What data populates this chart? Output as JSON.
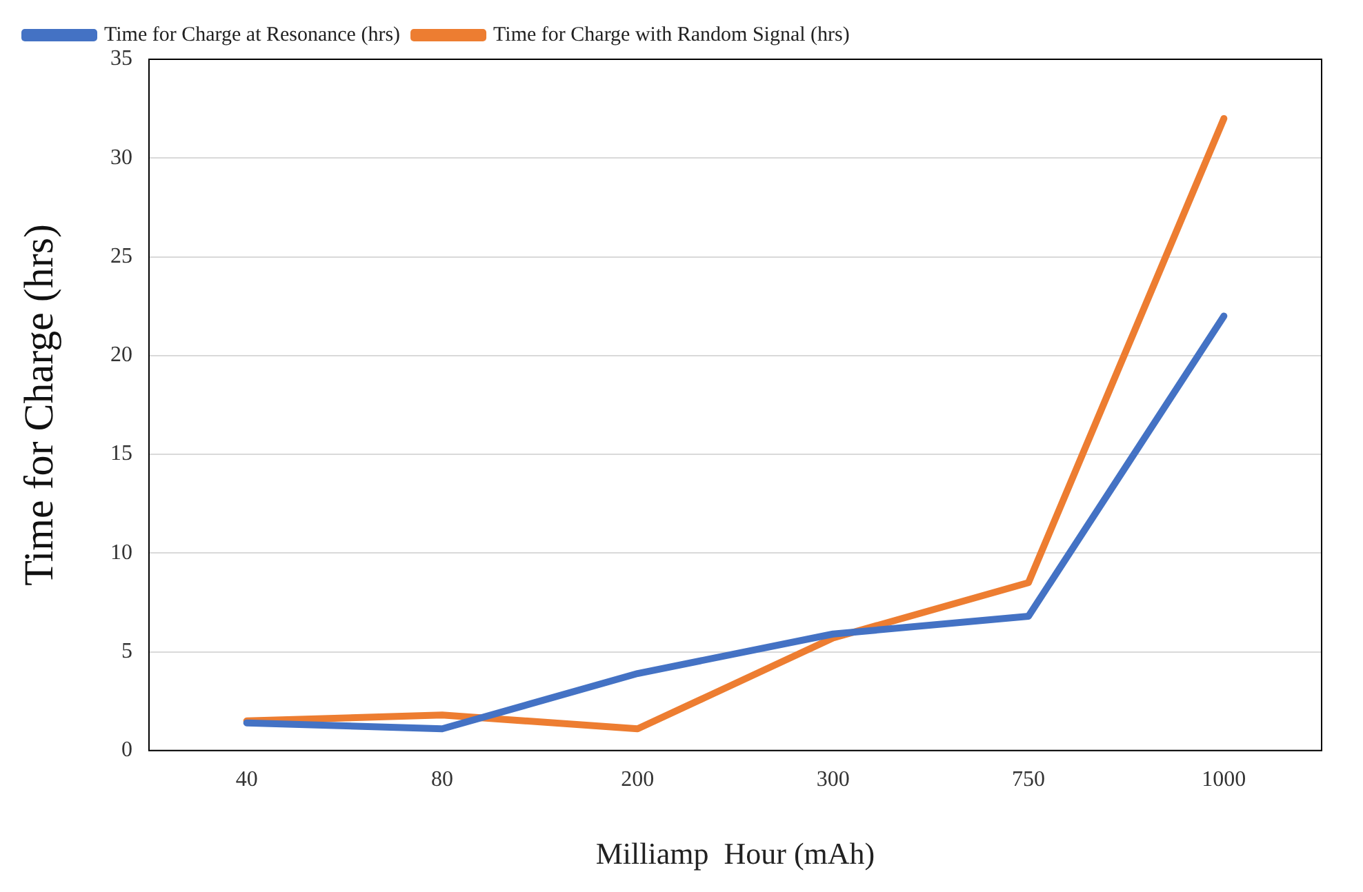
{
  "chart_data": {
    "type": "line",
    "xlabel": "Milliamp  Hour (mAh)",
    "ylabel": "Time for Charge (hrs)",
    "categories": [
      "40",
      "80",
      "200",
      "300",
      "750",
      "1000"
    ],
    "series": [
      {
        "name": "Time for Charge at Resonance (hrs)",
        "color": "#4472c4",
        "values": [
          1.4,
          1.1,
          3.9,
          5.9,
          6.8,
          22
        ]
      },
      {
        "name": "Time for Charge with Random Signal (hrs)",
        "color": "#ed7d31",
        "values": [
          1.5,
          1.8,
          1.1,
          5.7,
          8.5,
          32
        ]
      }
    ],
    "ylim": [
      0,
      35
    ],
    "yticks": [
      0,
      5,
      10,
      15,
      20,
      25,
      30,
      35
    ],
    "grid": "y",
    "legend": "top left",
    "marker": "none",
    "line_style": "solid"
  }
}
